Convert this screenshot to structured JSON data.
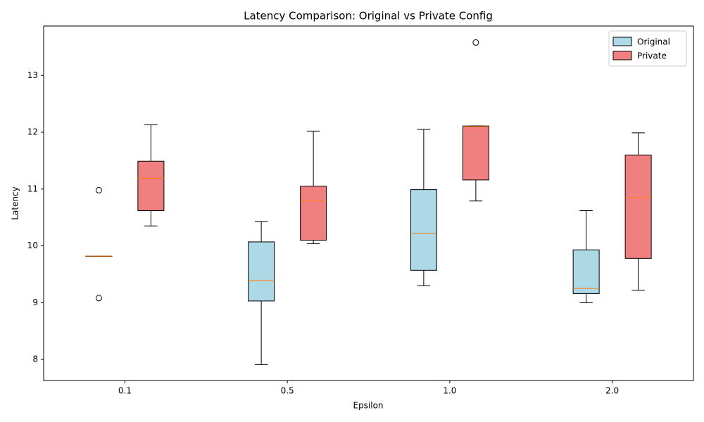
{
  "chart_data": {
    "type": "boxplot",
    "title": "Latency Comparison: Original vs Private Config",
    "xlabel": "Epsilon",
    "ylabel": "Latency",
    "categories": [
      "0.1",
      "0.5",
      "1.0",
      "2.0"
    ],
    "ylim": [
      7.63,
      13.87
    ],
    "yticks": [
      8,
      9,
      10,
      11,
      12,
      13
    ],
    "legend": "upper right",
    "median_color": "#ff7f0e",
    "series": [
      {
        "name": "Original",
        "color": "#add8e6",
        "boxes": [
          {
            "whislo": 9.82,
            "q1": 9.82,
            "med": 9.82,
            "q3": 9.82,
            "whishi": 9.82,
            "fliers": [
              10.98,
              9.08
            ]
          },
          {
            "whislo": 7.91,
            "q1": 9.03,
            "med": 9.39,
            "q3": 10.07,
            "whishi": 10.43,
            "fliers": []
          },
          {
            "whislo": 9.3,
            "q1": 9.57,
            "med": 10.22,
            "q3": 10.99,
            "whishi": 12.05,
            "fliers": []
          },
          {
            "whislo": 9.0,
            "q1": 9.16,
            "med": 9.25,
            "q3": 9.93,
            "whishi": 10.62,
            "fliers": []
          }
        ]
      },
      {
        "name": "Private",
        "color": "#f08080",
        "boxes": [
          {
            "whislo": 10.35,
            "q1": 10.62,
            "med": 11.19,
            "q3": 11.49,
            "whishi": 12.13,
            "fliers": []
          },
          {
            "whislo": 10.04,
            "q1": 10.1,
            "med": 10.8,
            "q3": 11.05,
            "whishi": 12.02,
            "fliers": []
          },
          {
            "whislo": 10.79,
            "q1": 11.16,
            "med": 12.1,
            "q3": 12.11,
            "whishi": 12.11,
            "fliers": [
              13.58
            ]
          },
          {
            "whislo": 9.22,
            "q1": 9.78,
            "med": 10.85,
            "q3": 11.6,
            "whishi": 11.99,
            "fliers": []
          }
        ]
      }
    ]
  }
}
